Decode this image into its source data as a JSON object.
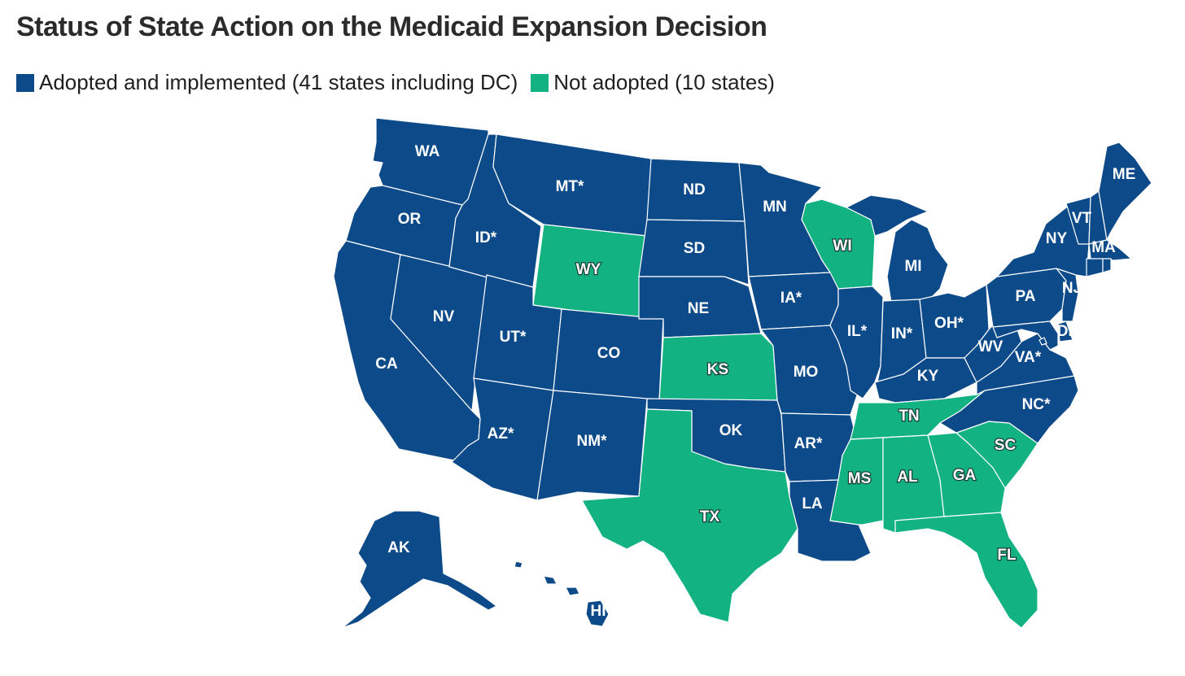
{
  "title": "Status of State Action on the Medicaid Expansion Decision",
  "legend": {
    "adopted": {
      "label": "Adopted and implemented (41 states including DC)",
      "color": "#0d4a8a"
    },
    "not_adopted": {
      "label": "Not adopted (10 states)",
      "color": "#13b283"
    }
  },
  "states": {
    "WA": {
      "label": "WA",
      "status": "adopted"
    },
    "OR": {
      "label": "OR",
      "status": "adopted"
    },
    "CA": {
      "label": "CA",
      "status": "adopted"
    },
    "NV": {
      "label": "NV",
      "status": "adopted"
    },
    "ID": {
      "label": "ID*",
      "status": "adopted"
    },
    "MT": {
      "label": "MT*",
      "status": "adopted"
    },
    "WY": {
      "label": "WY",
      "status": "not_adopted"
    },
    "UT": {
      "label": "UT*",
      "status": "adopted"
    },
    "AZ": {
      "label": "AZ*",
      "status": "adopted"
    },
    "CO": {
      "label": "CO",
      "status": "adopted"
    },
    "NM": {
      "label": "NM*",
      "status": "adopted"
    },
    "ND": {
      "label": "ND",
      "status": "adopted"
    },
    "SD": {
      "label": "SD",
      "status": "adopted"
    },
    "NE": {
      "label": "NE",
      "status": "adopted"
    },
    "KS": {
      "label": "KS",
      "status": "not_adopted"
    },
    "OK": {
      "label": "OK",
      "status": "adopted"
    },
    "TX": {
      "label": "TX",
      "status": "not_adopted"
    },
    "MN": {
      "label": "MN",
      "status": "adopted"
    },
    "IA": {
      "label": "IA*",
      "status": "adopted"
    },
    "MO": {
      "label": "MO",
      "status": "adopted"
    },
    "AR": {
      "label": "AR*",
      "status": "adopted"
    },
    "LA": {
      "label": "LA",
      "status": "adopted"
    },
    "WI": {
      "label": "WI",
      "status": "not_adopted"
    },
    "IL": {
      "label": "IL*",
      "status": "adopted"
    },
    "MI": {
      "label": "MI",
      "status": "adopted"
    },
    "IN": {
      "label": "IN*",
      "status": "adopted"
    },
    "OH": {
      "label": "OH*",
      "status": "adopted"
    },
    "KY": {
      "label": "KY",
      "status": "adopted"
    },
    "TN": {
      "label": "TN",
      "status": "not_adopted"
    },
    "MS": {
      "label": "MS",
      "status": "not_adopted"
    },
    "AL": {
      "label": "AL",
      "status": "not_adopted"
    },
    "GA": {
      "label": "GA",
      "status": "not_adopted"
    },
    "FL": {
      "label": "FL",
      "status": "not_adopted"
    },
    "SC": {
      "label": "SC",
      "status": "not_adopted"
    },
    "NC": {
      "label": "NC*",
      "status": "adopted"
    },
    "VA": {
      "label": "VA*",
      "status": "adopted"
    },
    "WV": {
      "label": "WV",
      "status": "adopted"
    },
    "PA": {
      "label": "PA",
      "status": "adopted"
    },
    "NY": {
      "label": "NY",
      "status": "adopted"
    },
    "NJ": {
      "label": "NJ",
      "status": "adopted"
    },
    "DE": {
      "label": "DE",
      "status": "adopted"
    },
    "VT": {
      "label": "VT",
      "status": "adopted"
    },
    "MA": {
      "label": "MA",
      "status": "adopted"
    },
    "ME": {
      "label": "ME",
      "status": "adopted"
    },
    "NH": {
      "label": "",
      "status": "adopted"
    },
    "CT": {
      "label": "",
      "status": "adopted"
    },
    "RI": {
      "label": "",
      "status": "adopted"
    },
    "MD": {
      "label": "",
      "status": "adopted"
    },
    "DC": {
      "label": "",
      "status": "adopted"
    },
    "AK": {
      "label": "AK",
      "status": "adopted"
    },
    "HI": {
      "label": "HI",
      "status": "adopted"
    }
  }
}
